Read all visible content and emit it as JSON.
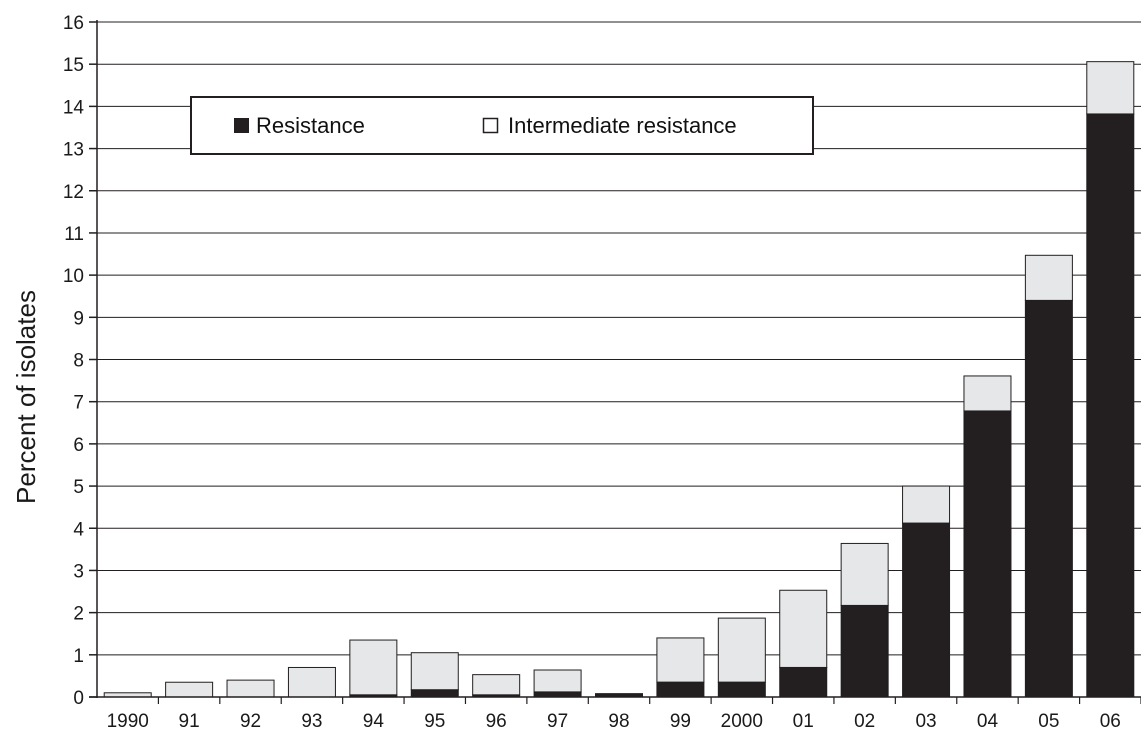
{
  "chart_data": {
    "type": "bar",
    "stacked": true,
    "title": "",
    "xlabel": "",
    "ylabel": "Percent of isolates",
    "ylim": [
      0,
      16
    ],
    "yticks": [
      "0",
      "1",
      "2",
      "3",
      "4",
      "5",
      "6",
      "7",
      "8",
      "9",
      "10",
      "11",
      "12",
      "13",
      "14",
      "15",
      "16"
    ],
    "grid": true,
    "legend_position": "top-left",
    "categories": [
      "1990",
      "91",
      "92",
      "93",
      "94",
      "95",
      "96",
      "97",
      "98",
      "99",
      "2000",
      "01",
      "02",
      "03",
      "04",
      "05",
      "06"
    ],
    "series": [
      {
        "name": "Resistance",
        "color": "#231f20",
        "values": [
          0,
          0,
          0,
          0,
          0.05,
          0.17,
          0.05,
          0.12,
          0.08,
          0.35,
          0.35,
          0.7,
          2.17,
          4.12,
          6.78,
          9.4,
          13.82
        ]
      },
      {
        "name": "Intermediate resistance",
        "color": "#e6e7e8",
        "values": [
          0.1,
          0.35,
          0.4,
          0.7,
          1.3,
          0.88,
          0.48,
          0.52,
          0,
          1.05,
          1.52,
          1.83,
          1.47,
          0.88,
          0.83,
          1.07,
          1.24
        ]
      }
    ]
  }
}
